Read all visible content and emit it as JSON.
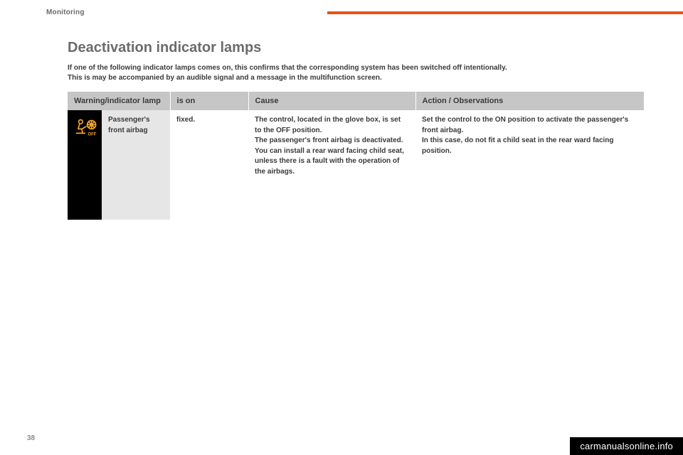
{
  "section_label": "Monitoring",
  "heading": "Deactivation indicator lamps",
  "intro_line1": "If one of the following indicator lamps comes on, this confirms that the corresponding system has been switched off intentionally.",
  "intro_line2": "This is may be accompanied by an audible signal and a message in the multifunction screen.",
  "table": {
    "headers": {
      "lamp": "Warning/indicator lamp",
      "is_on": "is on",
      "cause": "Cause",
      "action": "Action / Observations"
    },
    "row": {
      "icon_name": "passenger-airbag-off-icon",
      "icon_color": "#f5a623",
      "name": "Passenger's front airbag",
      "is_on": "fixed.",
      "cause": "The control, located in the glove box, is set to the OFF position.\nThe passenger's front airbag is deactivated.\nYou can install a rear ward facing child seat, unless there is a fault with the operation of the airbags.",
      "action": "Set the control to the ON position to activate the passenger's front airbag.\nIn this case, do not fit a child seat in the rear ward facing position."
    }
  },
  "page_number": "38",
  "watermark": "carmanualsonline.info",
  "colors": {
    "accent": "#e75113",
    "header_bg": "#c6c6c6",
    "name_bg": "#e6e6e6",
    "icon_bg": "#000000"
  }
}
